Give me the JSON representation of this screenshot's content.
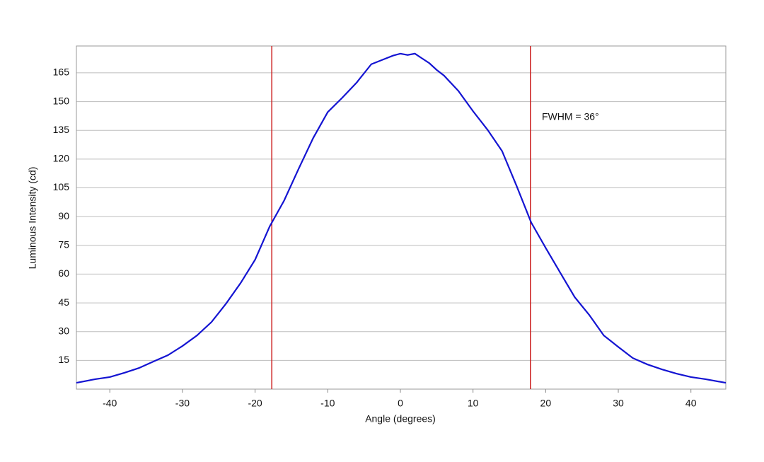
{
  "chart_data": {
    "type": "line",
    "x_label": "Angle (degrees)",
    "y_label": "Luminous Intensity (cd)",
    "annotation": "FWHM = 36°",
    "x": [
      -44.6,
      -42,
      -40,
      -38,
      -36,
      -34,
      -32,
      -30,
      -28,
      -26,
      -24,
      -22,
      -20,
      -18,
      -16,
      -14,
      -12,
      -10,
      -8,
      -6,
      -4,
      -2,
      -1,
      0,
      1,
      2,
      3,
      4,
      5,
      6,
      8,
      10,
      12,
      14,
      16,
      18,
      20,
      22,
      24,
      26,
      28,
      30,
      32,
      34,
      36,
      38,
      40,
      42,
      44.8
    ],
    "series": [
      {
        "name": "Luminous Intensity",
        "color": "#1414d2",
        "values": [
          3.3,
          5.2,
          6.3,
          8.5,
          11,
          14.4,
          17.7,
          22.5,
          28,
          35,
          44.6,
          55.3,
          67.5,
          84.8,
          98.4,
          115,
          131,
          144.5,
          152,
          160,
          169.5,
          172.5,
          174,
          175,
          174.3,
          175,
          172.5,
          170,
          166.5,
          163.6,
          155.5,
          145,
          135.3,
          124.2,
          106,
          87,
          73.7,
          60.8,
          48,
          38.7,
          28,
          22,
          16.2,
          12.9,
          10.3,
          8.1,
          6.3,
          5.2,
          3.3
        ]
      }
    ],
    "vlines": {
      "color": "#cc1f1f",
      "values": [
        -17.7,
        17.9
      ]
    },
    "xlim": [
      -44.6,
      44.8
    ],
    "xticks": [
      -40,
      -30,
      -20,
      -10,
      0,
      10,
      20,
      30,
      40
    ],
    "ylim": [
      0,
      179
    ],
    "yticks": [
      15,
      30,
      45,
      60,
      75,
      90,
      105,
      120,
      135,
      150,
      165
    ],
    "grid": true
  }
}
